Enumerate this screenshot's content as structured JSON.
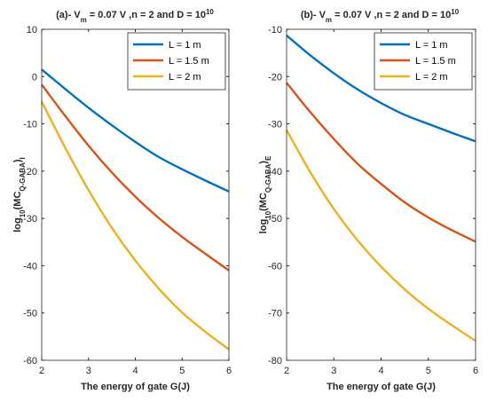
{
  "chart_data": [
    {
      "type": "line",
      "title": {
        "prefix": "(a)- V",
        "prefix_sub": "m",
        "mid": " = 0.07 V ,n = 2 and D = 10",
        "sup": "10"
      },
      "xlabel": "The energy of gate G(J)",
      "ylabel": {
        "base": "log",
        "sub1": "10",
        "mid": "(MC",
        "sub2": "Q-GABA",
        "end": ")",
        "sub3": "I"
      },
      "xlim": [
        2,
        6
      ],
      "ylim": [
        -60,
        10
      ],
      "xticks": [
        2,
        3,
        4,
        5,
        6
      ],
      "yticks": [
        -60,
        -50,
        -40,
        -30,
        -20,
        -10,
        0,
        10
      ],
      "legend_position": "top-right",
      "grid": false,
      "series": [
        {
          "name": "L = 1 m",
          "color": "#0072BD",
          "x": [
            2,
            2.5,
            3,
            3.5,
            4,
            4.5,
            5,
            5.5,
            6
          ],
          "y": [
            1.5,
            -2.6,
            -6.6,
            -10.3,
            -13.8,
            -17.0,
            -19.6,
            -22.0,
            -24.3
          ]
        },
        {
          "name": "L = 1.5 m",
          "color": "#D95319",
          "x": [
            2,
            2.5,
            3,
            3.5,
            4,
            4.5,
            5,
            5.5,
            6
          ],
          "y": [
            -1.7,
            -8.3,
            -14.6,
            -20.3,
            -25.4,
            -29.9,
            -33.9,
            -37.5,
            -41.0
          ]
        },
        {
          "name": "L = 2 m",
          "color": "#EDB120",
          "x": [
            2,
            2.5,
            3,
            3.5,
            4,
            4.5,
            5,
            5.5,
            6
          ],
          "y": [
            -5.3,
            -15.0,
            -24.0,
            -32.0,
            -38.9,
            -44.8,
            -49.9,
            -54.0,
            -57.7
          ]
        }
      ]
    },
    {
      "type": "line",
      "title": {
        "prefix": "(b)- V",
        "prefix_sub": "m",
        "mid": " = 0.07 V ,n = 2 and D = 10",
        "sup": "10"
      },
      "xlabel": "The energy of gate G(J)",
      "ylabel": {
        "base": "log",
        "sub1": "10",
        "mid": "(MC",
        "sub2": "Q-GABA",
        "end": ")",
        "sub3": "E"
      },
      "xlim": [
        2,
        6
      ],
      "ylim": [
        -80,
        -10
      ],
      "xticks": [
        2,
        3,
        4,
        5,
        6
      ],
      "yticks": [
        -80,
        -70,
        -60,
        -50,
        -40,
        -30,
        -20,
        -10
      ],
      "legend_position": "top-right",
      "grid": false,
      "series": [
        {
          "name": "L = 1 m",
          "color": "#0072BD",
          "x": [
            2,
            2.5,
            3,
            3.5,
            4,
            4.5,
            5,
            5.5,
            6
          ],
          "y": [
            -11.3,
            -15.5,
            -19.3,
            -22.7,
            -25.6,
            -28.1,
            -30.0,
            -31.9,
            -33.7
          ]
        },
        {
          "name": "L = 1.5 m",
          "color": "#D95319",
          "x": [
            2,
            2.5,
            3,
            3.5,
            4,
            4.5,
            5,
            5.5,
            6
          ],
          "y": [
            -21.3,
            -27.5,
            -33.2,
            -38.4,
            -42.7,
            -46.6,
            -49.8,
            -52.5,
            -54.9
          ]
        },
        {
          "name": "L = 2 m",
          "color": "#EDB120",
          "x": [
            2,
            2.5,
            3,
            3.5,
            4,
            4.5,
            5,
            5.5,
            6
          ],
          "y": [
            -31.3,
            -40.2,
            -48.0,
            -54.6,
            -60.2,
            -65.0,
            -69.1,
            -72.6,
            -75.9
          ]
        }
      ]
    }
  ]
}
